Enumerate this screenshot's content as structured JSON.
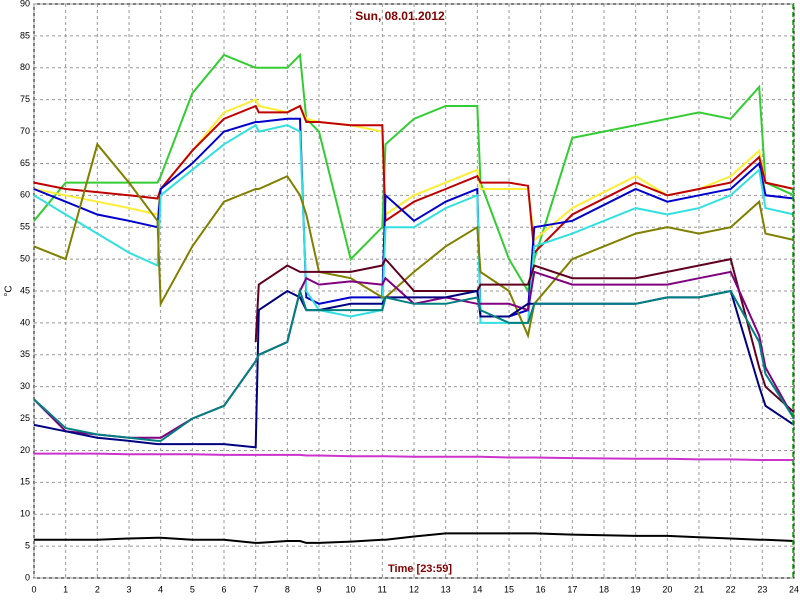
{
  "chart_data": {
    "type": "line",
    "title": "Sun, 08.01.2012",
    "x_label": "Time [23:59]",
    "y_label": "°C",
    "xlim": [
      0,
      24
    ],
    "xticks": [
      0,
      1,
      2,
      3,
      4,
      5,
      6,
      7,
      8,
      9,
      10,
      11,
      12,
      13,
      14,
      15,
      16,
      17,
      18,
      19,
      20,
      21,
      22,
      23,
      24
    ],
    "ylim": [
      0,
      90
    ],
    "yticks": [
      0,
      5,
      10,
      15,
      20,
      25,
      30,
      35,
      40,
      45,
      50,
      55,
      60,
      65,
      70,
      75,
      80,
      85,
      90
    ],
    "grid": true,
    "x": [
      0,
      1,
      2,
      3,
      3.9,
      4,
      5,
      6,
      7,
      7.1,
      8,
      8.4,
      8.6,
      9,
      10,
      11,
      11.1,
      12,
      13,
      14,
      14.1,
      15,
      15.6,
      15.8,
      17,
      19,
      20,
      21,
      22,
      22.9,
      23.1,
      24
    ],
    "series": [
      {
        "color": "#33cc33",
        "values": [
          56,
          62,
          62,
          62,
          62,
          63,
          76,
          82,
          80,
          80,
          80,
          82,
          72,
          70,
          50,
          55,
          68,
          72,
          74,
          74,
          62,
          50,
          45,
          50,
          69,
          71,
          72,
          73,
          72,
          77,
          62,
          60
        ]
      },
      {
        "color": "#ffee33",
        "values": [
          61,
          60,
          59,
          58,
          57,
          61,
          67,
          73,
          75,
          74,
          73,
          74,
          72,
          71.5,
          71,
          70,
          57,
          60,
          62,
          64,
          61,
          61,
          61,
          53,
          58,
          63,
          60,
          61,
          63,
          67,
          62,
          61
        ]
      },
      {
        "color": "#c00000",
        "values": [
          62,
          61,
          60.5,
          60,
          59.5,
          61,
          67,
          72,
          74,
          73,
          73,
          74,
          71.5,
          71.5,
          71,
          71,
          56,
          59,
          61,
          63,
          62,
          62,
          61.5,
          51,
          57,
          62,
          60,
          61,
          62,
          66,
          62,
          61
        ]
      },
      {
        "color": "#0000cc",
        "values": [
          61,
          59,
          57,
          56,
          55,
          61,
          65,
          70,
          71.5,
          71.5,
          72,
          72,
          44,
          43,
          44,
          44,
          60,
          56,
          59,
          61,
          41,
          41,
          42,
          55,
          56,
          61,
          59,
          60,
          61,
          65,
          60,
          59.5
        ]
      },
      {
        "color": "#33e0e0",
        "values": [
          60,
          57,
          54,
          51,
          49,
          60,
          64,
          68,
          71,
          70,
          71,
          70,
          45,
          42,
          41,
          42,
          55,
          55,
          58,
          60,
          40,
          40,
          40,
          52,
          54,
          58,
          57,
          58,
          60,
          64,
          58,
          57
        ]
      },
      {
        "color": "#808000",
        "values": [
          52,
          50,
          68,
          62,
          56,
          43,
          52,
          59,
          61,
          61,
          63,
          60,
          57,
          48,
          47,
          44,
          44,
          48,
          52,
          55,
          48,
          45,
          38,
          43,
          50,
          54,
          55,
          54,
          55,
          59,
          54,
          53
        ]
      },
      {
        "color": "#600020",
        "values": [
          null,
          null,
          null,
          null,
          null,
          null,
          null,
          null,
          37,
          46,
          49,
          48,
          48,
          48,
          48,
          49,
          50,
          45,
          45,
          45,
          46,
          46,
          46,
          49,
          47,
          47,
          48,
          49,
          50,
          33,
          30,
          26
        ]
      },
      {
        "color": "#800080",
        "values": [
          28,
          23,
          22.5,
          22,
          22,
          22,
          25,
          27,
          34,
          35,
          37,
          45,
          47,
          46,
          46.5,
          46,
          47,
          43,
          44,
          43,
          43,
          43,
          42,
          48,
          46,
          46,
          46,
          47,
          48,
          38,
          33,
          25
        ]
      },
      {
        "color": "#000080",
        "values": [
          24,
          23,
          22,
          21.5,
          21,
          21,
          21,
          21,
          20.5,
          42,
          45,
          44,
          42,
          42,
          43,
          43,
          44,
          44,
          44,
          45,
          41,
          41,
          43,
          43,
          43,
          43,
          44,
          44,
          45,
          30,
          27,
          24
        ]
      },
      {
        "color": "#008080",
        "values": [
          28,
          23.5,
          22.5,
          22,
          21.5,
          21.5,
          25,
          27,
          34,
          35,
          37,
          45,
          42,
          42,
          42,
          42,
          44,
          43,
          43,
          44,
          42,
          40,
          40,
          43,
          43,
          43,
          44,
          44,
          45,
          37,
          32,
          25
        ]
      },
      {
        "color": "#cc33cc",
        "values": [
          19.5,
          19.5,
          19.5,
          19.4,
          19.4,
          19.4,
          19.4,
          19.3,
          19.3,
          19.3,
          19.3,
          19.3,
          19.2,
          19.2,
          19.1,
          19.1,
          19.1,
          19,
          19,
          19,
          19,
          18.9,
          18.9,
          18.9,
          18.8,
          18.7,
          18.7,
          18.6,
          18.6,
          18.5,
          18.5,
          18.5
        ]
      },
      {
        "color": "#000000",
        "values": [
          6,
          6,
          6,
          6.2,
          6.3,
          6.3,
          6,
          6,
          5.5,
          5.5,
          5.8,
          5.8,
          5.5,
          5.5,
          5.7,
          6,
          6,
          6.5,
          7,
          7,
          7,
          7,
          7,
          7,
          6.8,
          6.6,
          6.6,
          6.4,
          6.2,
          6,
          6,
          5.8
        ]
      }
    ]
  }
}
